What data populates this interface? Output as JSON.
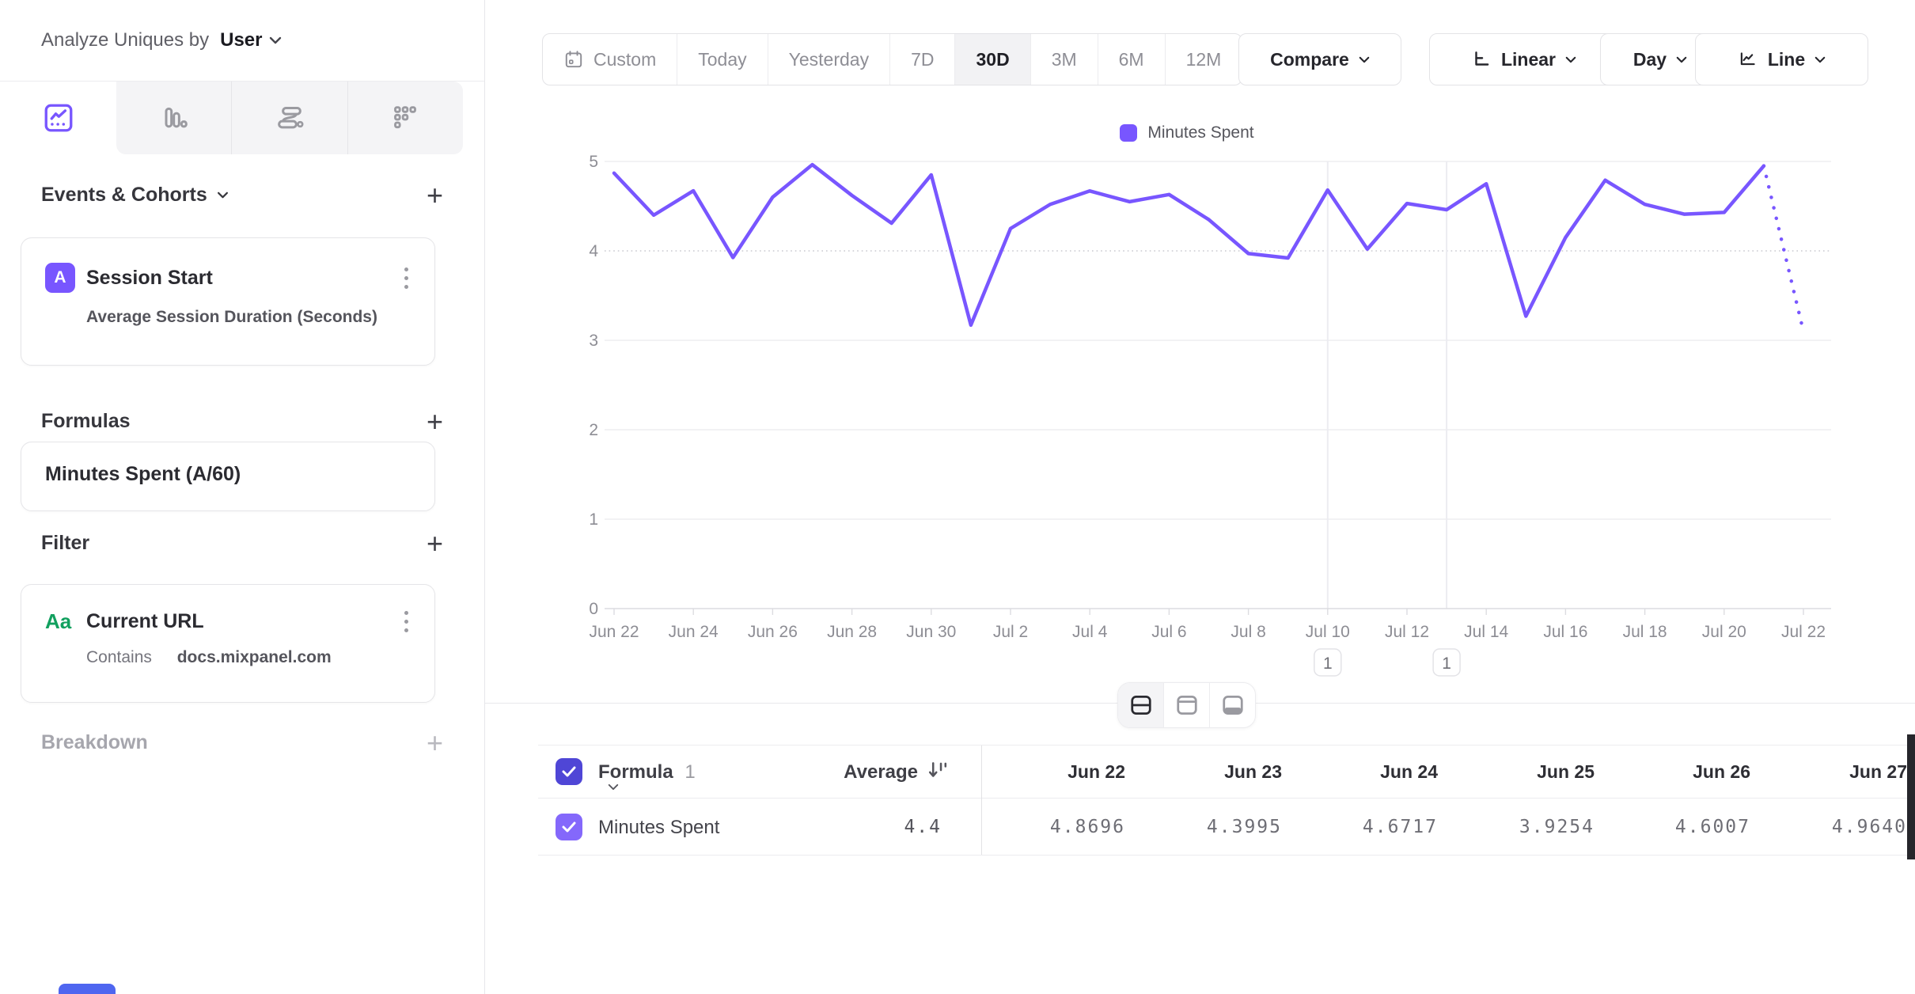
{
  "sidebar": {
    "analyze_label": "Analyze Uniques by",
    "analyze_value": "User",
    "events_section_title": "Events & Cohorts",
    "event_card": {
      "badge": "A",
      "title": "Session Start",
      "subtitle": "Average Session Duration (Seconds)"
    },
    "formulas_section_title": "Formulas",
    "formula_card": {
      "title": "Minutes Spent (A/60)"
    },
    "filter_section_title": "Filter",
    "filter_card": {
      "badge": "Aa",
      "title": "Current URL",
      "operator": "Contains",
      "value": "docs.mixpanel.com"
    },
    "breakdown_section_title": "Breakdown"
  },
  "toolbar": {
    "date_ranges": [
      "Custom",
      "Today",
      "Yesterday",
      "7D",
      "30D",
      "3M",
      "6M",
      "12M"
    ],
    "selected_range": "30D",
    "compare_label": "Compare",
    "scale_label": "Linear",
    "granularity_label": "Day",
    "chart_type_label": "Line"
  },
  "chart_data": {
    "type": "line",
    "legend": [
      "Minutes Spent"
    ],
    "legend_position": "top-center",
    "categories": [
      "Jun 22",
      "Jun 23",
      "Jun 24",
      "Jun 25",
      "Jun 26",
      "Jun 27",
      "Jun 28",
      "Jun 29",
      "Jun 30",
      "Jul 1",
      "Jul 2",
      "Jul 3",
      "Jul 4",
      "Jul 5",
      "Jul 6",
      "Jul 7",
      "Jul 8",
      "Jul 9",
      "Jul 10",
      "Jul 11",
      "Jul 12",
      "Jul 13",
      "Jul 14",
      "Jul 15",
      "Jul 16",
      "Jul 17",
      "Jul 18",
      "Jul 19",
      "Jul 20",
      "Jul 21",
      "Jul 22"
    ],
    "series": [
      {
        "name": "Minutes Spent",
        "values": [
          4.8696,
          4.3995,
          4.6717,
          3.9254,
          4.6007,
          4.964,
          4.62,
          4.31,
          4.85,
          3.17,
          4.25,
          4.52,
          4.67,
          4.55,
          4.63,
          4.35,
          3.97,
          3.92,
          4.68,
          4.02,
          4.53,
          4.46,
          4.75,
          3.27,
          4.15,
          4.79,
          4.52,
          4.41,
          4.43,
          4.95,
          3.1
        ]
      }
    ],
    "ylim": [
      0,
      5
    ],
    "y_ticks": [
      0,
      1,
      2,
      3,
      4,
      5
    ],
    "x_tick_every": 2,
    "grid": "horizontal",
    "dashed_gridline_at": 4,
    "last_segment_style": "dotted",
    "annotations": [
      {
        "category": "Jul 10",
        "label": "1"
      },
      {
        "category": "Jul 13",
        "label": "1"
      }
    ]
  },
  "table": {
    "group_label": "Formula",
    "group_index": "1",
    "average_label": "Average",
    "columns": [
      "Jun 22",
      "Jun 23",
      "Jun 24",
      "Jun 25",
      "Jun 26",
      "Jun 27"
    ],
    "rows": [
      {
        "name": "Minutes Spent",
        "average": "4.4",
        "values": [
          "4.8696",
          "4.3995",
          "4.6717",
          "3.9254",
          "4.6007",
          "4.9640"
        ]
      }
    ]
  },
  "colors": {
    "accent_purple": "#7856ff",
    "checkbox_dark": "#4f46d6",
    "checkbox_light": "#8468fb",
    "property_green": "#12a05f"
  }
}
